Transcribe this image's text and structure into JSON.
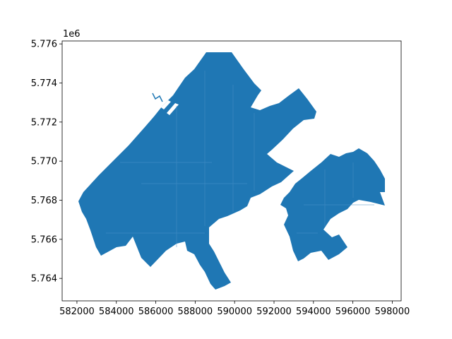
{
  "chart_data": {
    "type": "map",
    "title": "",
    "xlabel": "",
    "ylabel": "",
    "y_offset_label": "1e6",
    "xlim": [
      581250,
      598450
    ],
    "ylim": [
      5762850,
      5776150
    ],
    "x_ticks": [
      {
        "value": 582000,
        "label": "582000"
      },
      {
        "value": 584000,
        "label": "584000"
      },
      {
        "value": 586000,
        "label": "586000"
      },
      {
        "value": 588000,
        "label": "588000"
      },
      {
        "value": 590000,
        "label": "590000"
      },
      {
        "value": 592000,
        "label": "592000"
      },
      {
        "value": 594000,
        "label": "594000"
      },
      {
        "value": 596000,
        "label": "596000"
      },
      {
        "value": 598000,
        "label": "598000"
      }
    ],
    "y_ticks": [
      {
        "value": 5764000,
        "label": "5.764"
      },
      {
        "value": 5766000,
        "label": "5.766"
      },
      {
        "value": 5768000,
        "label": "5.768"
      },
      {
        "value": 5770000,
        "label": "5.770"
      },
      {
        "value": 5772000,
        "label": "5.772"
      },
      {
        "value": 5774000,
        "label": "5.774"
      },
      {
        "value": 5776000,
        "label": "5.776"
      }
    ],
    "fill_color": "#1f77b4",
    "grid": false
  }
}
